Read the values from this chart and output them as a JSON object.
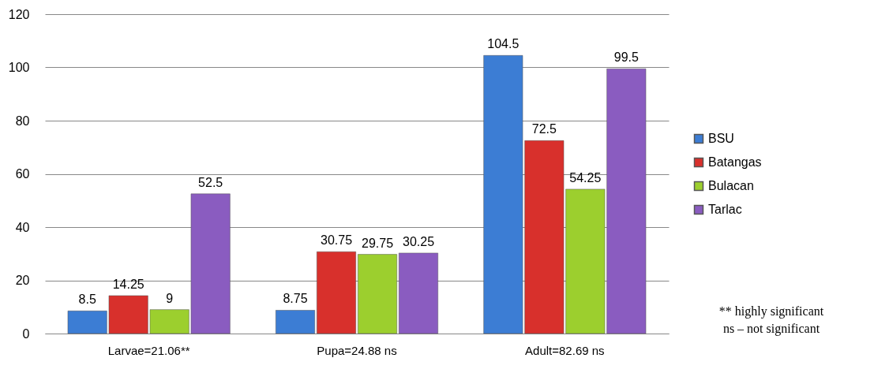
{
  "chart_data": {
    "type": "bar",
    "categories": [
      "Larvae=21.06**",
      "Pupa=24.88 ns",
      "Adult=82.69 ns"
    ],
    "series": [
      {
        "name": "BSU",
        "color": "#3c7dd4",
        "values": [
          8.5,
          8.75,
          104.5
        ]
      },
      {
        "name": "Batangas",
        "color": "#d8302c",
        "values": [
          14.25,
          30.75,
          72.5
        ]
      },
      {
        "name": "Bulacan",
        "color": "#9ccf2e",
        "values": [
          9,
          29.75,
          54.25
        ]
      },
      {
        "name": "Tarlac",
        "color": "#8a5cc0",
        "values": [
          52.5,
          30.25,
          99.5
        ]
      }
    ],
    "ylim": [
      0,
      120
    ],
    "yticks": [
      0,
      20,
      40,
      60,
      80,
      100,
      120
    ],
    "grid": "y",
    "legend": "right",
    "data_labels": true,
    "annotations": [
      "** highly significant",
      "ns – not significant"
    ]
  }
}
